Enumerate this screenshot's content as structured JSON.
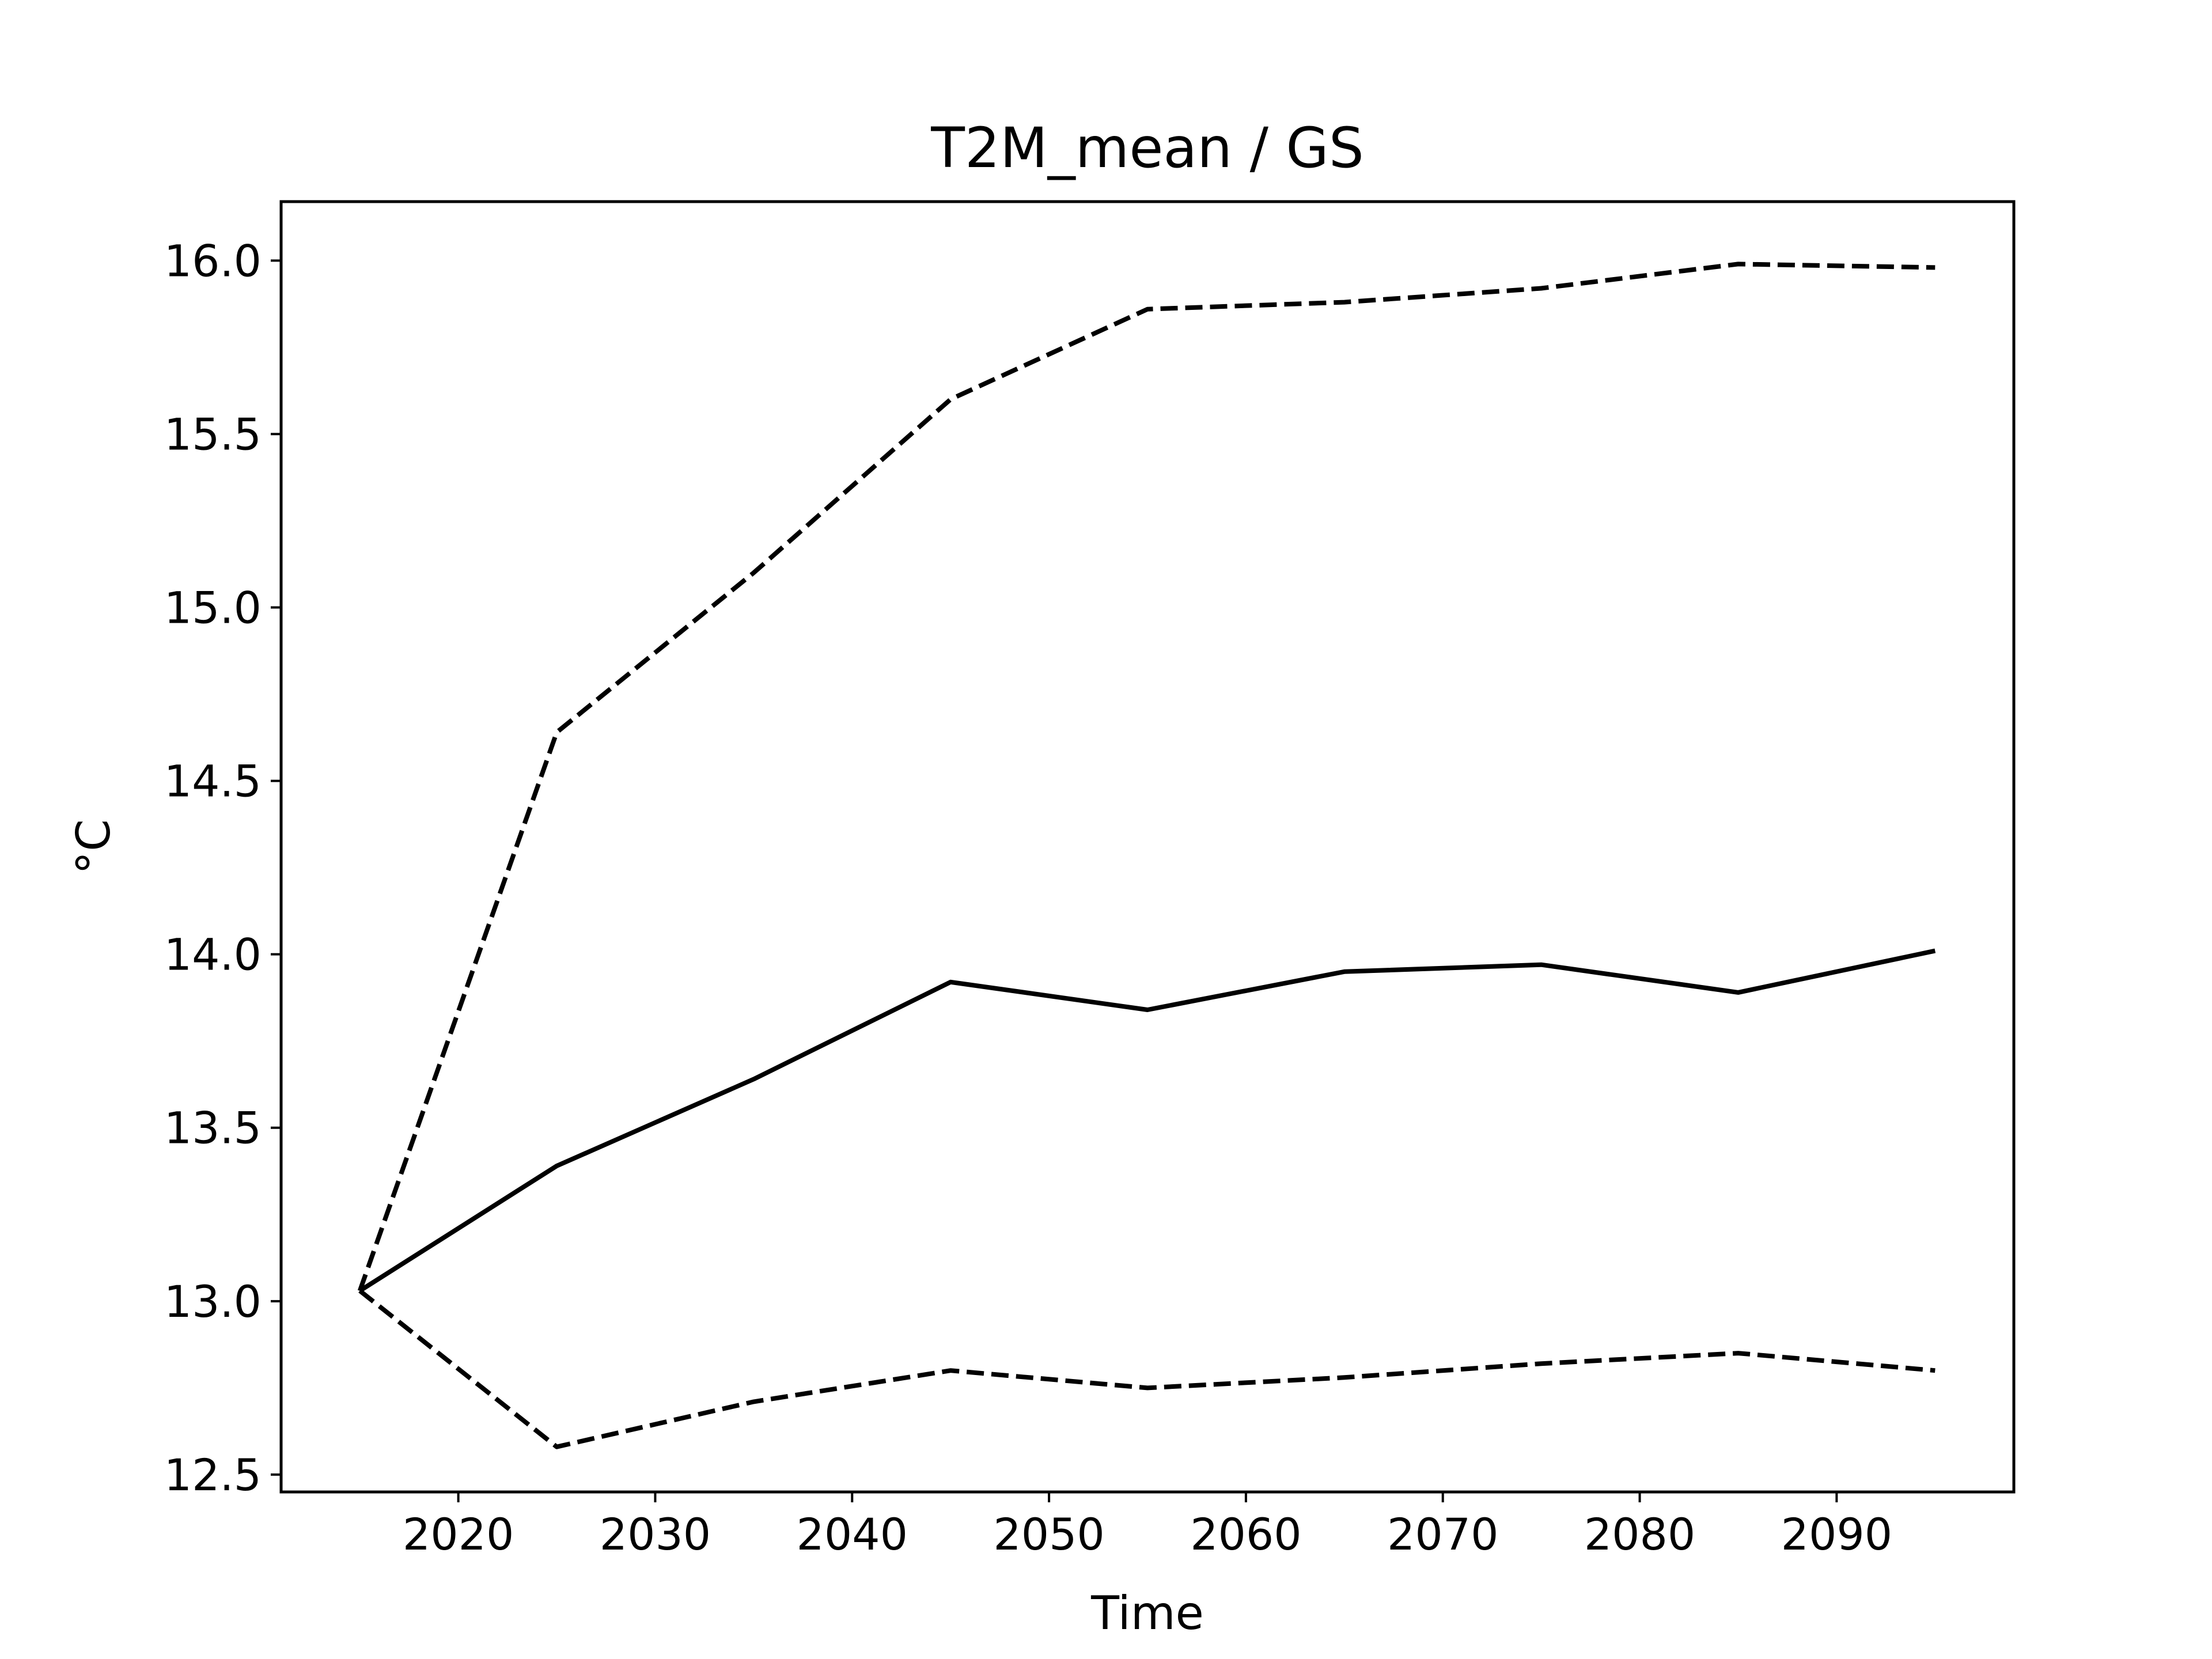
{
  "chart_data": {
    "type": "line",
    "title": "T2M_mean / GS",
    "xlabel": "Time",
    "ylabel": "°C",
    "xlim": [
      2011,
      2099
    ],
    "ylim": [
      12.45,
      16.17
    ],
    "xticks": [
      2020,
      2030,
      2040,
      2050,
      2060,
      2070,
      2080,
      2090
    ],
    "yticks": [
      12.5,
      13.0,
      13.5,
      14.0,
      14.5,
      15.0,
      15.5,
      16.0
    ],
    "ytick_labels": [
      "12.5",
      "13.0",
      "13.5",
      "14.0",
      "14.5",
      "15.0",
      "15.5",
      "16.0"
    ],
    "grid": false,
    "x": [
      2015,
      2025,
      2035,
      2045,
      2055,
      2065,
      2075,
      2085,
      2095
    ],
    "series": [
      {
        "style": "dashed",
        "color": "#000000",
        "values": [
          13.03,
          14.64,
          15.1,
          15.6,
          15.86,
          15.88,
          15.92,
          15.99,
          15.98
        ]
      },
      {
        "style": "solid",
        "color": "#000000",
        "values": [
          13.03,
          13.39,
          13.64,
          13.92,
          13.84,
          13.95,
          13.97,
          13.89,
          14.01
        ]
      },
      {
        "style": "dashed",
        "color": "#000000",
        "values": [
          13.03,
          12.58,
          12.71,
          12.8,
          12.75,
          12.78,
          12.82,
          12.85,
          12.8
        ]
      }
    ]
  }
}
